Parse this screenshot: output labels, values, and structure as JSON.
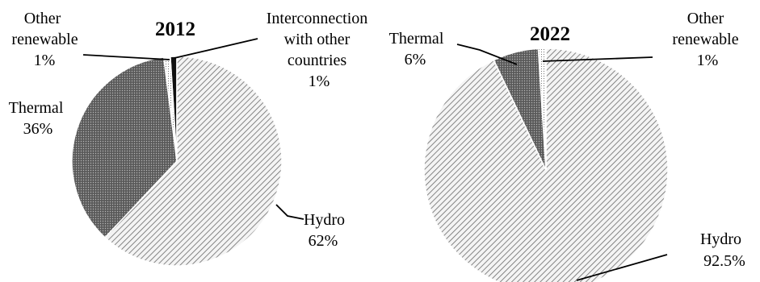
{
  "colors": {
    "background": "#ffffff",
    "stroke": "#ffffff",
    "text": "#000000",
    "hydro_pattern": "diagonal-hatch-light",
    "thermal_pattern": "dark-stipple",
    "other_renewable_pattern": "white-dotted",
    "interconnection_pattern": "solid-black"
  },
  "chart_data": [
    {
      "type": "pie",
      "title": "2012",
      "slices": [
        {
          "name": "Hydro",
          "name_lines": [
            "Hydro"
          ],
          "value": 62,
          "value_label": "62%",
          "fill": "hydro"
        },
        {
          "name": "Thermal",
          "name_lines": [
            "Thermal"
          ],
          "value": 36,
          "value_label": "36%",
          "fill": "thermal"
        },
        {
          "name": "Other renewable",
          "name_lines": [
            "Other",
            "renewable"
          ],
          "value": 1,
          "value_label": "1%",
          "fill": "other"
        },
        {
          "name": "Interconnection with other countries",
          "name_lines": [
            "Interconnection",
            "with other",
            "countries"
          ],
          "value": 1,
          "value_label": "1%",
          "fill": "inter"
        }
      ]
    },
    {
      "type": "pie",
      "title": "2022",
      "slices": [
        {
          "name": "Hydro",
          "name_lines": [
            "Hydro"
          ],
          "value": 92.5,
          "value_label": "92.5%",
          "fill": "hydro"
        },
        {
          "name": "Thermal",
          "name_lines": [
            "Thermal"
          ],
          "value": 6,
          "value_label": "6%",
          "fill": "thermal"
        },
        {
          "name": "Other renewable",
          "name_lines": [
            "Other",
            "renewable"
          ],
          "value": 1,
          "value_label": "1%",
          "fill": "other"
        }
      ]
    }
  ]
}
